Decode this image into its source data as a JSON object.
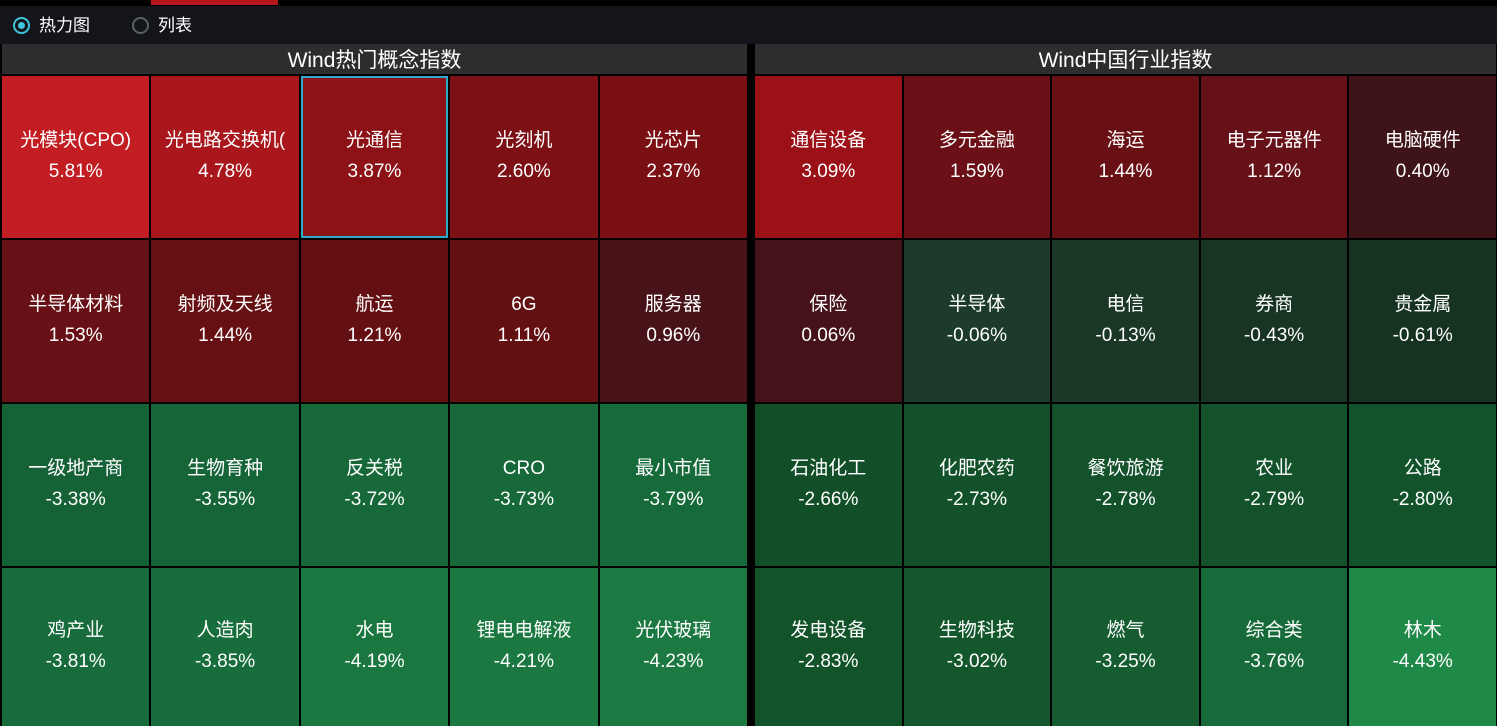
{
  "accent": {
    "tab_indicator_color": "#b5181c",
    "radio_selected_color": "#3ec6d8",
    "selected_tile_border": "#2fa9c9"
  },
  "toolbar": {
    "options": [
      {
        "label": "热力图",
        "selected": true
      },
      {
        "label": "列表",
        "selected": false
      }
    ]
  },
  "panels": [
    {
      "title": "Wind热门概念指数",
      "tiles": [
        {
          "name": "光模块(CPO)",
          "value": "5.81%",
          "color": "#c11d23"
        },
        {
          "name": "光电路交换机(",
          "value": "4.78%",
          "color": "#a9161c"
        },
        {
          "name": "光通信",
          "value": "3.87%",
          "color": "#8c1217",
          "selected": true
        },
        {
          "name": "光刻机",
          "value": "2.60%",
          "color": "#7c1014"
        },
        {
          "name": "光芯片",
          "value": "2.37%",
          "color": "#7a1014"
        },
        {
          "name": "半导体材料",
          "value": "1.53%",
          "color": "#671015"
        },
        {
          "name": "射频及天线",
          "value": "1.44%",
          "color": "#661014"
        },
        {
          "name": "航运",
          "value": "1.21%",
          "color": "#641013"
        },
        {
          "name": "6G",
          "value": "1.11%",
          "color": "#631013"
        },
        {
          "name": "服务器",
          "value": "0.96%",
          "color": "#481318"
        },
        {
          "name": "一级地产商",
          "value": "-3.38%",
          "color": "#166237"
        },
        {
          "name": "生物育种",
          "value": "-3.55%",
          "color": "#166538"
        },
        {
          "name": "反关税",
          "value": "-3.72%",
          "color": "#17693a"
        },
        {
          "name": "CRO",
          "value": "-3.73%",
          "color": "#17693a"
        },
        {
          "name": "最小市值",
          "value": "-3.79%",
          "color": "#176b3b"
        },
        {
          "name": "鸡产业",
          "value": "-3.81%",
          "color": "#186c3b"
        },
        {
          "name": "人造肉",
          "value": "-3.85%",
          "color": "#186d3c"
        },
        {
          "name": "水电",
          "value": "-4.19%",
          "color": "#1a773f"
        },
        {
          "name": "锂电电解液",
          "value": "-4.21%",
          "color": "#1a7840"
        },
        {
          "name": "光伏玻璃",
          "value": "-4.23%",
          "color": "#1b7941"
        }
      ]
    },
    {
      "title": "Wind中国行业指数",
      "tiles": [
        {
          "name": "通信设备",
          "value": "3.09%",
          "color": "#9b1117"
        },
        {
          "name": "多元金融",
          "value": "1.59%",
          "color": "#6b1016"
        },
        {
          "name": "海运",
          "value": "1.44%",
          "color": "#691015"
        },
        {
          "name": "电子元器件",
          "value": "1.12%",
          "color": "#661018"
        },
        {
          "name": "电脑硬件",
          "value": "0.40%",
          "color": "#3f1418"
        },
        {
          "name": "保险",
          "value": "0.06%",
          "color": "#451219"
        },
        {
          "name": "半导体",
          "value": "-0.06%",
          "color": "#1d3b2a"
        },
        {
          "name": "电信",
          "value": "-0.13%",
          "color": "#1b3827"
        },
        {
          "name": "券商",
          "value": "-0.43%",
          "color": "#183524"
        },
        {
          "name": "贵金属",
          "value": "-0.61%",
          "color": "#163321"
        },
        {
          "name": "石油化工",
          "value": "-2.66%",
          "color": "#124f29"
        },
        {
          "name": "化肥农药",
          "value": "-2.73%",
          "color": "#13512a"
        },
        {
          "name": "餐饮旅游",
          "value": "-2.78%",
          "color": "#13522b"
        },
        {
          "name": "农业",
          "value": "-2.79%",
          "color": "#13522b"
        },
        {
          "name": "公路",
          "value": "-2.80%",
          "color": "#13532b"
        },
        {
          "name": "发电设备",
          "value": "-2.83%",
          "color": "#135329"
        },
        {
          "name": "生物科技",
          "value": "-3.02%",
          "color": "#14572d"
        },
        {
          "name": "燃气",
          "value": "-3.25%",
          "color": "#155d31"
        },
        {
          "name": "综合类",
          "value": "-3.76%",
          "color": "#176a39"
        },
        {
          "name": "林木",
          "value": "-4.43%",
          "color": "#1f8a47"
        }
      ]
    }
  ],
  "chart_data": {
    "type": "heatmap",
    "title": "",
    "series": [
      {
        "name": "Wind热门概念指数",
        "categories": [
          "光模块(CPO)",
          "光电路交换机(",
          "光通信",
          "光刻机",
          "光芯片",
          "半导体材料",
          "射频及天线",
          "航运",
          "6G",
          "服务器",
          "一级地产商",
          "生物育种",
          "反关税",
          "CRO",
          "最小市值",
          "鸡产业",
          "人造肉",
          "水电",
          "锂电电解液",
          "光伏玻璃"
        ],
        "values": [
          5.81,
          4.78,
          3.87,
          2.6,
          2.37,
          1.53,
          1.44,
          1.21,
          1.11,
          0.96,
          -3.38,
          -3.55,
          -3.72,
          -3.73,
          -3.79,
          -3.81,
          -3.85,
          -4.19,
          -4.21,
          -4.23
        ]
      },
      {
        "name": "Wind中国行业指数",
        "categories": [
          "通信设备",
          "多元金融",
          "海运",
          "电子元器件",
          "电脑硬件",
          "保险",
          "半导体",
          "电信",
          "券商",
          "贵金属",
          "石油化工",
          "化肥农药",
          "餐饮旅游",
          "农业",
          "公路",
          "发电设备",
          "生物科技",
          "燃气",
          "综合类",
          "林木"
        ],
        "values": [
          3.09,
          1.59,
          1.44,
          1.12,
          0.4,
          0.06,
          -0.06,
          -0.13,
          -0.43,
          -0.61,
          -2.66,
          -2.73,
          -2.78,
          -2.79,
          -2.8,
          -2.83,
          -3.02,
          -3.25,
          -3.76,
          -4.43
        ]
      }
    ],
    "layout_hints": {
      "grid": "5 columns x 4 rows per panel",
      "color_scale": "red = positive change, green = negative change",
      "unit": "%"
    }
  }
}
